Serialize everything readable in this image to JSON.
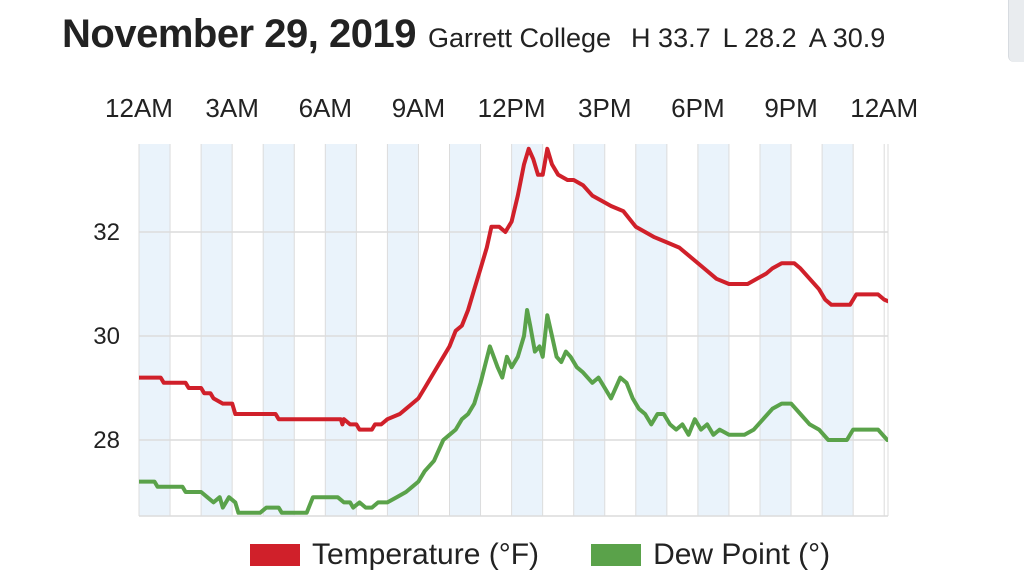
{
  "header": {
    "date": "November 29, 2019",
    "station": "Garrett College",
    "high": "H 33.7",
    "low": "L 28.2",
    "avg": "A 30.9"
  },
  "colors": {
    "temperature": "#d0202a",
    "dew_point": "#5aa24a",
    "band": "#eaf3fb",
    "grid": "#dcdcdc"
  },
  "legend": {
    "temperature_label": "Temperature (°F)",
    "dew_label": "Dew Point (°)"
  },
  "chart_data": {
    "type": "line",
    "x_unit": "hours",
    "xlim": [
      0,
      24
    ],
    "ylim": [
      26.5,
      33.6
    ],
    "x_tick_labels": [
      "12AM",
      "3AM",
      "6AM",
      "9AM",
      "12PM",
      "3PM",
      "6PM",
      "9PM",
      "12AM"
    ],
    "x_tick_values": [
      0,
      3,
      6,
      9,
      12,
      15,
      18,
      21,
      24
    ],
    "y_tick_labels": [
      "28",
      "30",
      "32"
    ],
    "y_tick_values": [
      28,
      30,
      32
    ],
    "grid": true,
    "legend_position": "bottom",
    "series": [
      {
        "name": "Temperature (°F)",
        "points": [
          [
            0,
            29.2
          ],
          [
            0.7,
            29.2
          ],
          [
            0.8,
            29.1
          ],
          [
            1.5,
            29.1
          ],
          [
            1.6,
            29.0
          ],
          [
            2.0,
            29.0
          ],
          [
            2.1,
            28.9
          ],
          [
            2.3,
            28.9
          ],
          [
            2.4,
            28.8
          ],
          [
            2.7,
            28.7
          ],
          [
            3.0,
            28.7
          ],
          [
            3.1,
            28.5
          ],
          [
            4.4,
            28.5
          ],
          [
            4.5,
            28.4
          ],
          [
            6.0,
            28.4
          ],
          [
            6.4,
            28.4
          ],
          [
            6.5,
            28.4
          ],
          [
            6.55,
            28.3
          ],
          [
            6.6,
            28.4
          ],
          [
            6.8,
            28.3
          ],
          [
            7.0,
            28.3
          ],
          [
            7.1,
            28.2
          ],
          [
            7.5,
            28.2
          ],
          [
            7.6,
            28.3
          ],
          [
            7.8,
            28.3
          ],
          [
            8.0,
            28.4
          ],
          [
            8.4,
            28.5
          ],
          [
            8.6,
            28.6
          ],
          [
            8.8,
            28.7
          ],
          [
            9.0,
            28.8
          ],
          [
            9.2,
            29.0
          ],
          [
            9.5,
            29.3
          ],
          [
            9.8,
            29.6
          ],
          [
            10.0,
            29.8
          ],
          [
            10.2,
            30.1
          ],
          [
            10.4,
            30.2
          ],
          [
            10.6,
            30.5
          ],
          [
            10.8,
            30.9
          ],
          [
            11.0,
            31.3
          ],
          [
            11.2,
            31.7
          ],
          [
            11.35,
            32.1
          ],
          [
            11.6,
            32.1
          ],
          [
            11.8,
            32.0
          ],
          [
            12.0,
            32.2
          ],
          [
            12.2,
            32.7
          ],
          [
            12.4,
            33.3
          ],
          [
            12.55,
            33.6
          ],
          [
            12.7,
            33.4
          ],
          [
            12.85,
            33.1
          ],
          [
            13.0,
            33.1
          ],
          [
            13.15,
            33.6
          ],
          [
            13.3,
            33.3
          ],
          [
            13.5,
            33.1
          ],
          [
            13.8,
            33.0
          ],
          [
            14.0,
            33.0
          ],
          [
            14.3,
            32.9
          ],
          [
            14.6,
            32.7
          ],
          [
            14.9,
            32.6
          ],
          [
            15.2,
            32.5
          ],
          [
            15.6,
            32.4
          ],
          [
            16.0,
            32.1
          ],
          [
            16.3,
            32.0
          ],
          [
            16.6,
            31.9
          ],
          [
            17.0,
            31.8
          ],
          [
            17.4,
            31.7
          ],
          [
            17.8,
            31.5
          ],
          [
            18.2,
            31.3
          ],
          [
            18.6,
            31.1
          ],
          [
            19.0,
            31.0
          ],
          [
            19.6,
            31.0
          ],
          [
            19.9,
            31.1
          ],
          [
            20.2,
            31.2
          ],
          [
            20.4,
            31.3
          ],
          [
            20.7,
            31.4
          ],
          [
            21.1,
            31.4
          ],
          [
            21.3,
            31.3
          ],
          [
            21.6,
            31.1
          ],
          [
            21.9,
            30.9
          ],
          [
            22.1,
            30.7
          ],
          [
            22.3,
            30.6
          ],
          [
            22.9,
            30.6
          ],
          [
            23.1,
            30.8
          ],
          [
            23.8,
            30.8
          ],
          [
            24.0,
            30.7
          ],
          [
            24.4,
            30.6
          ],
          [
            24.7,
            30.5
          ],
          [
            25.0,
            30.5
          ]
        ]
      },
      {
        "name": "Dew Point (°)",
        "points": [
          [
            0,
            27.2
          ],
          [
            0.5,
            27.2
          ],
          [
            0.6,
            27.1
          ],
          [
            1.4,
            27.1
          ],
          [
            1.5,
            27.0
          ],
          [
            2.0,
            27.0
          ],
          [
            2.2,
            26.9
          ],
          [
            2.4,
            26.8
          ],
          [
            2.6,
            26.9
          ],
          [
            2.7,
            26.7
          ],
          [
            2.9,
            26.9
          ],
          [
            3.1,
            26.8
          ],
          [
            3.2,
            26.6
          ],
          [
            3.6,
            26.6
          ],
          [
            3.9,
            26.6
          ],
          [
            4.1,
            26.7
          ],
          [
            4.5,
            26.7
          ],
          [
            4.6,
            26.6
          ],
          [
            5.3,
            26.6
          ],
          [
            5.4,
            26.6
          ],
          [
            5.6,
            26.9
          ],
          [
            6.4,
            26.9
          ],
          [
            6.6,
            26.8
          ],
          [
            6.8,
            26.8
          ],
          [
            6.9,
            26.7
          ],
          [
            7.1,
            26.8
          ],
          [
            7.3,
            26.7
          ],
          [
            7.5,
            26.7
          ],
          [
            7.7,
            26.8
          ],
          [
            8.0,
            26.8
          ],
          [
            8.3,
            26.9
          ],
          [
            8.6,
            27.0
          ],
          [
            8.8,
            27.1
          ],
          [
            9.0,
            27.2
          ],
          [
            9.2,
            27.4
          ],
          [
            9.5,
            27.6
          ],
          [
            9.8,
            28.0
          ],
          [
            10.0,
            28.1
          ],
          [
            10.2,
            28.2
          ],
          [
            10.4,
            28.4
          ],
          [
            10.6,
            28.5
          ],
          [
            10.8,
            28.7
          ],
          [
            11.0,
            29.1
          ],
          [
            11.3,
            29.8
          ],
          [
            11.55,
            29.4
          ],
          [
            11.7,
            29.2
          ],
          [
            11.85,
            29.6
          ],
          [
            12.0,
            29.4
          ],
          [
            12.2,
            29.6
          ],
          [
            12.4,
            30.0
          ],
          [
            12.5,
            30.5
          ],
          [
            12.6,
            30.2
          ],
          [
            12.75,
            29.7
          ],
          [
            12.9,
            29.8
          ],
          [
            13.0,
            29.6
          ],
          [
            13.15,
            30.4
          ],
          [
            13.3,
            30.0
          ],
          [
            13.45,
            29.6
          ],
          [
            13.6,
            29.5
          ],
          [
            13.75,
            29.7
          ],
          [
            13.9,
            29.6
          ],
          [
            14.1,
            29.4
          ],
          [
            14.3,
            29.3
          ],
          [
            14.6,
            29.1
          ],
          [
            14.8,
            29.2
          ],
          [
            15.0,
            29.0
          ],
          [
            15.2,
            28.8
          ],
          [
            15.5,
            29.2
          ],
          [
            15.7,
            29.1
          ],
          [
            15.9,
            28.8
          ],
          [
            16.1,
            28.6
          ],
          [
            16.3,
            28.5
          ],
          [
            16.5,
            28.3
          ],
          [
            16.7,
            28.5
          ],
          [
            16.9,
            28.5
          ],
          [
            17.1,
            28.3
          ],
          [
            17.3,
            28.2
          ],
          [
            17.5,
            28.3
          ],
          [
            17.7,
            28.1
          ],
          [
            17.9,
            28.4
          ],
          [
            18.1,
            28.2
          ],
          [
            18.3,
            28.3
          ],
          [
            18.5,
            28.1
          ],
          [
            18.7,
            28.2
          ],
          [
            19.0,
            28.1
          ],
          [
            19.5,
            28.1
          ],
          [
            19.8,
            28.2
          ],
          [
            20.1,
            28.4
          ],
          [
            20.4,
            28.6
          ],
          [
            20.7,
            28.7
          ],
          [
            21.0,
            28.7
          ],
          [
            21.3,
            28.5
          ],
          [
            21.6,
            28.3
          ],
          [
            21.9,
            28.2
          ],
          [
            22.2,
            28.0
          ],
          [
            22.5,
            28.0
          ],
          [
            22.8,
            28.0
          ],
          [
            23.0,
            28.2
          ],
          [
            23.8,
            28.2
          ],
          [
            24.1,
            28.0
          ],
          [
            24.4,
            28.0
          ],
          [
            24.6,
            27.9
          ],
          [
            25.0,
            27.9
          ]
        ]
      }
    ]
  }
}
